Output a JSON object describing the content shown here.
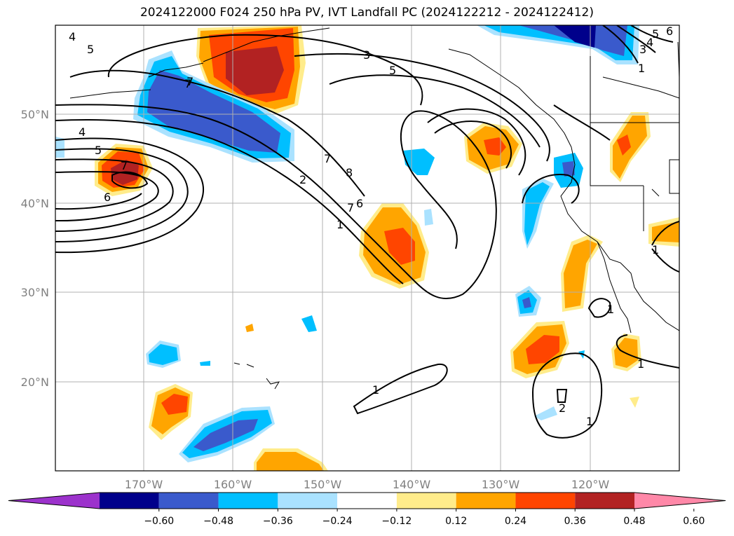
{
  "title": "2024122000 F024 250 hPa PV, IVT Landfall PC (2024122212 - 2024122412)",
  "lon_ticks": [
    "170°W",
    "160°W",
    "150°W",
    "140°W",
    "130°W",
    "120°W"
  ],
  "lat_ticks": [
    "50°N",
    "40°N",
    "30°N",
    "20°N"
  ],
  "lon_values": [
    -170,
    -160,
    -150,
    -140,
    -130,
    -120
  ],
  "lat_values": [
    50,
    40,
    30,
    20
  ],
  "extent": {
    "lon_min": -179.8,
    "lon_max": -110,
    "lat_min": 10,
    "lat_max": 59.8
  },
  "colorbar": {
    "ticks": [
      "−0.60",
      "−0.48",
      "−0.36",
      "−0.24",
      "−0.12",
      "0.12",
      "0.24",
      "0.36",
      "0.48",
      "0.60"
    ],
    "levels": [
      -0.6,
      -0.48,
      -0.36,
      -0.24,
      -0.12,
      0.12,
      0.24,
      0.36,
      0.48,
      0.6
    ],
    "colors": [
      "#9c32cc",
      "#00008b",
      "#3a5acc",
      "#00bfff",
      "#aae2ff",
      "#ffffff",
      "#ffec8b",
      "#ffa500",
      "#ff4500",
      "#b22222",
      "#ff88a8"
    ]
  },
  "contour_labels": [
    {
      "text": "4"
    },
    {
      "text": "5"
    },
    {
      "text": "7"
    },
    {
      "text": "4"
    },
    {
      "text": "5"
    },
    {
      "text": "7"
    },
    {
      "text": "6"
    },
    {
      "text": "3"
    },
    {
      "text": "5"
    },
    {
      "text": "7"
    },
    {
      "text": "8"
    },
    {
      "text": "7"
    },
    {
      "text": "6"
    },
    {
      "text": "2"
    },
    {
      "text": "7"
    },
    {
      "text": "1"
    },
    {
      "text": "1"
    },
    {
      "text": "1"
    },
    {
      "text": "1"
    },
    {
      "text": "2"
    },
    {
      "text": "1"
    },
    {
      "text": "1"
    },
    {
      "text": "5"
    },
    {
      "text": "6"
    },
    {
      "text": "4"
    },
    {
      "text": "3"
    },
    {
      "text": "1"
    }
  ]
}
